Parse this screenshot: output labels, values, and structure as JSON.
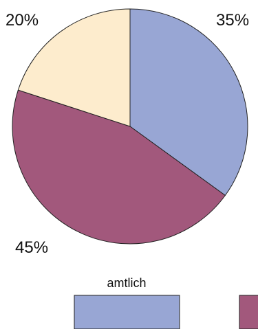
{
  "chart_data": {
    "type": "pie",
    "slices": [
      {
        "label": "amtlich",
        "value": 35,
        "display": "35%",
        "color": "#98a6d4"
      },
      {
        "label": "",
        "value": 45,
        "display": "45%",
        "color": "#a2587c"
      },
      {
        "label": "",
        "value": 20,
        "display": "20%",
        "color": "#fdeccd"
      }
    ],
    "start": "12 o'clock",
    "direction": "clockwise",
    "legend": {
      "placement": "bottom",
      "entries": [
        {
          "label": "amtlich",
          "color": "#98a6d4"
        },
        {
          "label": "",
          "color": "#a2587c"
        }
      ]
    }
  }
}
